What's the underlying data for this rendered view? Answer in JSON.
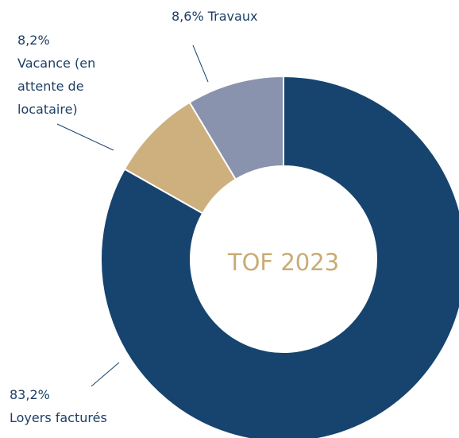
{
  "chart_data": {
    "type": "donut",
    "title": "TOF 2023",
    "categories": [
      "Loyers facturés",
      "Vacance (en attente de locataire)",
      "Travaux"
    ],
    "values": [
      83.2,
      8.2,
      8.6
    ],
    "value_labels": [
      "83,2%",
      "8,2%",
      "8,6%"
    ],
    "colors": [
      "#16446e",
      "#cdb07e",
      "#8a93ad"
    ]
  }
}
